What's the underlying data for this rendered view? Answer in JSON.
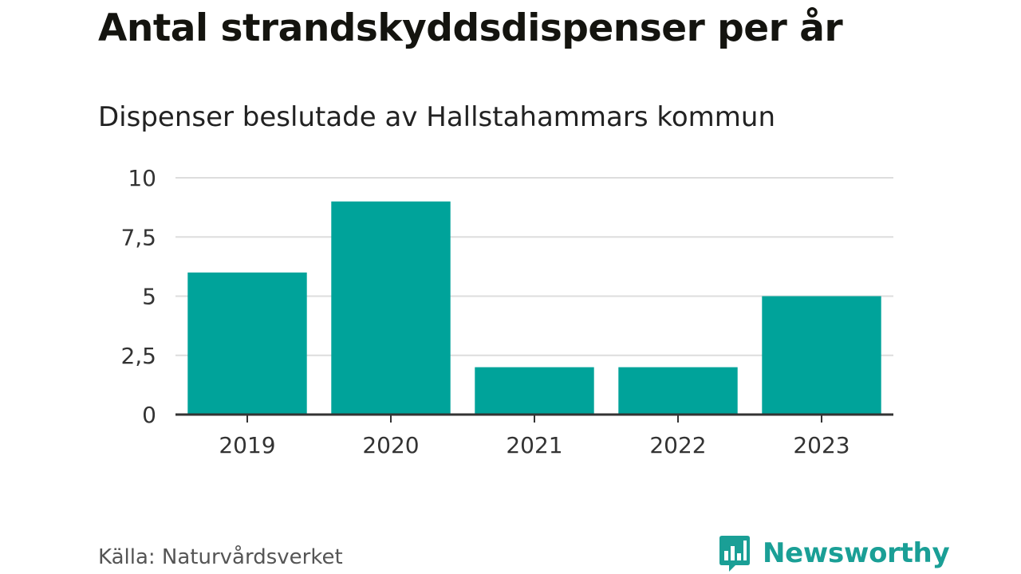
{
  "chart_data": {
    "type": "bar",
    "title": "Antal strandskyddsdispenser per år",
    "subtitle": "Dispenser beslutade av Hallstahammars kommun",
    "categories": [
      "2019",
      "2020",
      "2021",
      "2022",
      "2023"
    ],
    "values": [
      6,
      9,
      2,
      2,
      5
    ],
    "yticks": [
      0,
      2.5,
      5,
      7.5,
      10
    ],
    "ytick_labels": [
      "0",
      "2,5",
      "5",
      "7,5",
      "10"
    ],
    "ylim": [
      0,
      10
    ],
    "xlabel": "",
    "ylabel": "",
    "grid": true,
    "bar_color": "#00a39a",
    "source": "Källa: Naturvårdsverket"
  },
  "branding": {
    "name": "Newsworthy",
    "icon": "bar-chart-logo-icon",
    "color": "#1a9f96"
  }
}
